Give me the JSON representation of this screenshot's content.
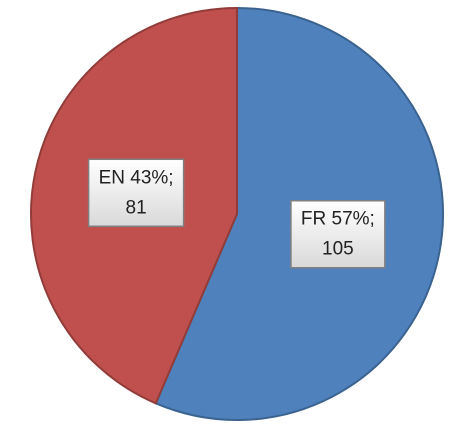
{
  "chart_data": {
    "type": "pie",
    "values": [
      105,
      81
    ],
    "value_labels": [
      [
        "FR 57%;",
        "105"
      ],
      [
        "EN 43%;",
        "81"
      ]
    ],
    "colors": [
      "#4f81bd",
      "#c0504d"
    ]
  }
}
